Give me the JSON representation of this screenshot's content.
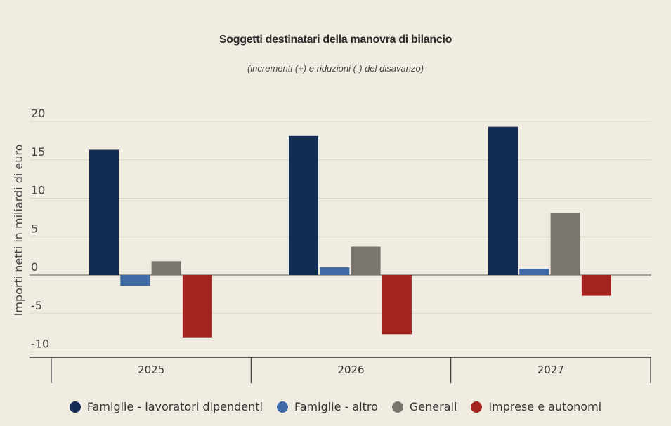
{
  "chart_data": {
    "type": "bar",
    "title": "Soggetti destinatari della manovra di bilancio",
    "subtitle": "(incrementi (+) e riduzioni (-) del disavanzo)",
    "ylabel": "Importi netti in miliardi di euro",
    "xlabel": "",
    "categories": [
      "2025",
      "2026",
      "2027"
    ],
    "ylim": [
      -10.5,
      20
    ],
    "yticks": [
      20,
      15,
      10,
      5,
      0,
      -5,
      -10
    ],
    "ytick_labels": [
      "20",
      "15",
      "10",
      "5",
      "0",
      "-5",
      "-10"
    ],
    "grid": true,
    "legend_position": "bottom",
    "series": [
      {
        "name": "Famiglie - lavoratori dipendenti",
        "color": "#132c54",
        "values": [
          16.3,
          18.1,
          19.3
        ]
      },
      {
        "name": "Famiglie - altro",
        "color": "#3e6aa8",
        "values": [
          -1.4,
          1.0,
          0.8
        ]
      },
      {
        "name": "Generali",
        "color": "#7a766d",
        "values": [
          1.8,
          3.7,
          8.1
        ]
      },
      {
        "name": "Imprese e autonomi",
        "color": "#a3231f",
        "values": [
          -8.1,
          -7.7,
          -2.7
        ]
      }
    ]
  }
}
